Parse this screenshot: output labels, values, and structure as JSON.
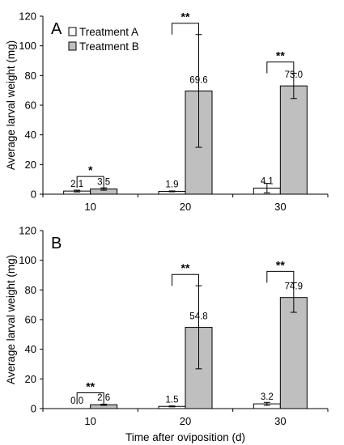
{
  "chart_data": [
    {
      "type": "bar",
      "panel_label": "A",
      "categories": [
        "10",
        "20",
        "30"
      ],
      "series": [
        {
          "name": "Treatment A",
          "color": "#ffffff",
          "values": [
            2.1,
            1.9,
            4.1
          ],
          "errors": [
            0.6,
            0.3,
            3.2
          ]
        },
        {
          "name": "Treatment B",
          "color": "#bfbfbf",
          "values": [
            3.5,
            69.6,
            73.0
          ],
          "errors": [
            0.8,
            38.0,
            8.5
          ]
        }
      ],
      "value_labels": [
        [
          "2.1",
          "1.9",
          "4.1"
        ],
        [
          "3.5",
          "69.6",
          "73.0"
        ]
      ],
      "significance": [
        "*",
        "**",
        "**"
      ],
      "ylabel": "Average larval weight (mg)",
      "xlabel": "",
      "ylim": [
        0,
        120
      ],
      "yticks": [
        "0",
        "20",
        "40",
        "60",
        "80",
        "100",
        "120"
      ],
      "legend_position": "top-left",
      "grid": false
    },
    {
      "type": "bar",
      "panel_label": "B",
      "categories": [
        "10",
        "20",
        "30"
      ],
      "series": [
        {
          "name": "Treatment A",
          "color": "#ffffff",
          "values": [
            0.0,
            1.5,
            3.2
          ],
          "errors": [
            0.0,
            0.3,
            1.0
          ]
        },
        {
          "name": "Treatment B",
          "color": "#bfbfbf",
          "values": [
            2.6,
            54.8,
            74.9
          ],
          "errors": [
            0.4,
            28.0,
            10.0
          ]
        }
      ],
      "value_labels": [
        [
          "0.0",
          "1.5",
          "3.2"
        ],
        [
          "2.6",
          "54.8",
          "74.9"
        ]
      ],
      "significance": [
        "**",
        "**",
        "**"
      ],
      "ylabel": "Average larval weight (mg)",
      "xlabel": "Time after oviposition (d)",
      "ylim": [
        0,
        120
      ],
      "yticks": [
        "0",
        "20",
        "40",
        "60",
        "80",
        "100",
        "120"
      ],
      "legend_position": "none",
      "grid": false
    }
  ]
}
